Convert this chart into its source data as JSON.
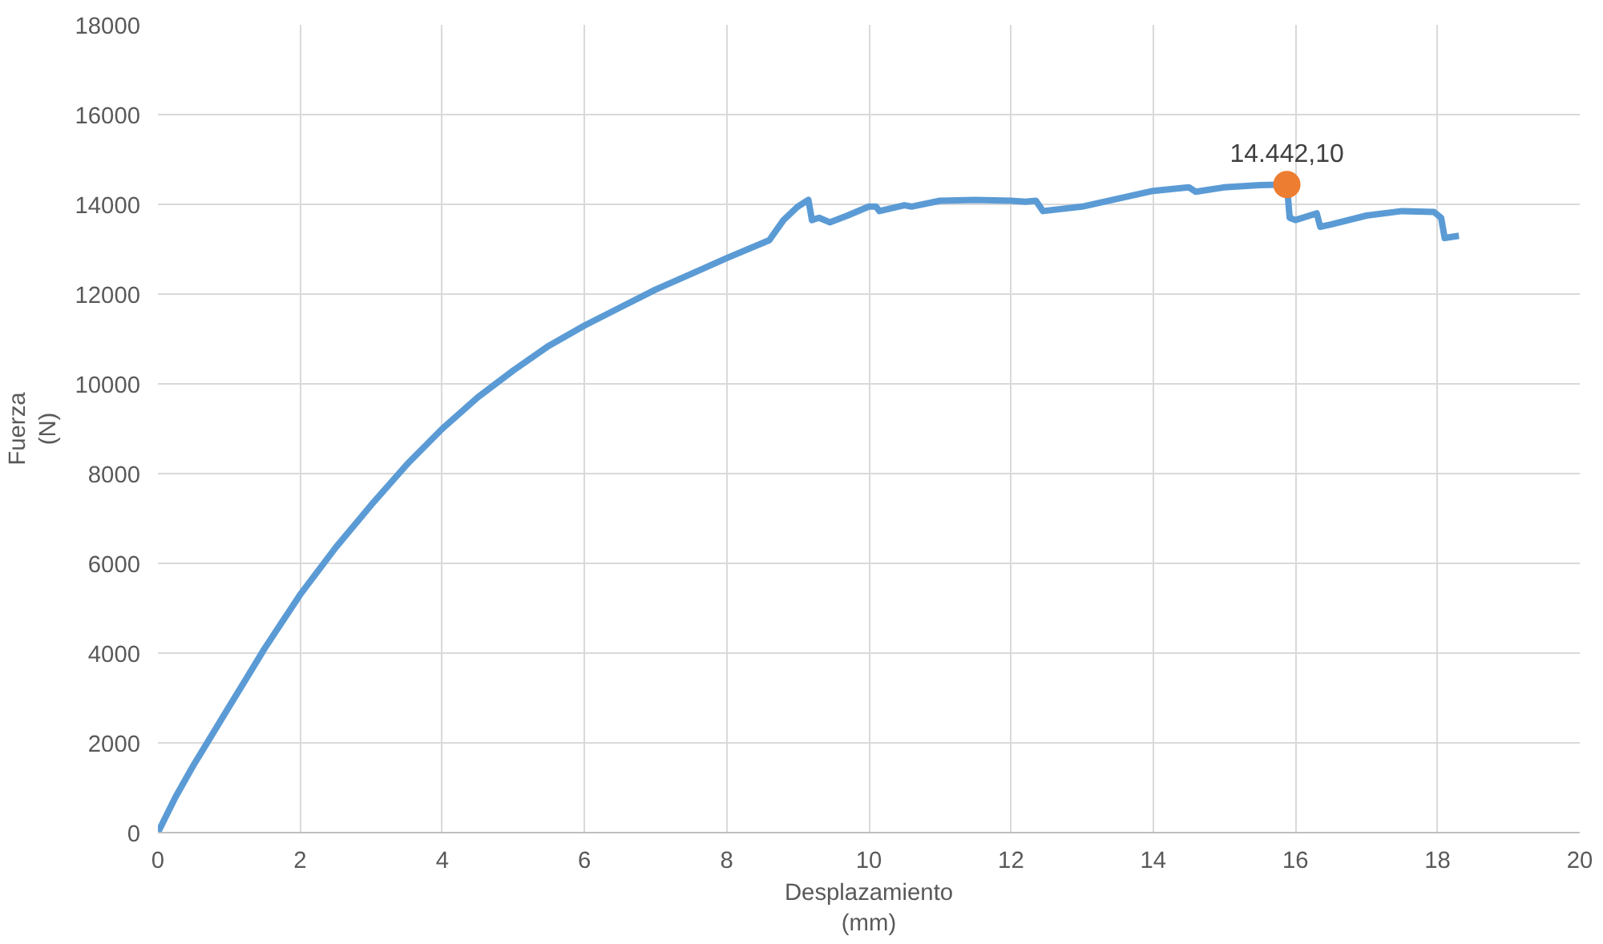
{
  "chart_data": {
    "type": "line",
    "xlabel": "Desplazamiento\n(mm)",
    "ylabel": "Fuerza\n(N)",
    "xlim": [
      0,
      20
    ],
    "xticks": [
      0,
      2,
      4,
      6,
      8,
      10,
      12,
      14,
      16,
      18,
      20
    ],
    "ylim": [
      0,
      18000
    ],
    "yticks": [
      0,
      2000,
      4000,
      6000,
      8000,
      10000,
      12000,
      14000,
      16000,
      18000
    ],
    "grid": true,
    "marker": "none",
    "line_style": "solid",
    "series": [
      {
        "color": "#5b9bd5",
        "x": [
          0,
          0.25,
          0.5,
          0.75,
          1,
          1.25,
          1.5,
          1.75,
          2,
          2.5,
          3,
          3.5,
          4,
          4.5,
          5,
          5.5,
          6,
          6.5,
          7,
          7.5,
          8,
          8.6,
          8.8,
          9.0,
          9.15,
          9.2,
          9.3,
          9.45,
          9.7,
          10.0,
          10.1,
          10.15,
          10.5,
          10.6,
          11.0,
          11.5,
          12.0,
          12.2,
          12.35,
          12.45,
          13.0,
          14.0,
          14.5,
          14.6,
          15.0,
          15.5,
          15.88,
          15.92,
          16.0,
          16.3,
          16.35,
          16.5,
          17.0,
          17.5,
          17.95,
          18.05,
          18.1,
          18.3
        ],
        "values": [
          0,
          800,
          1500,
          2150,
          2800,
          3450,
          4100,
          4700,
          5300,
          6350,
          7300,
          8200,
          9000,
          9700,
          10300,
          10850,
          11300,
          11700,
          12100,
          12450,
          12800,
          13200,
          13650,
          13950,
          14100,
          13650,
          13700,
          13600,
          13750,
          13950,
          13950,
          13850,
          13980,
          13950,
          14080,
          14100,
          14080,
          14060,
          14080,
          13850,
          13950,
          14300,
          14380,
          14280,
          14380,
          14430,
          14440,
          13700,
          13650,
          13800,
          13500,
          13550,
          13750,
          13850,
          13830,
          13700,
          13250,
          13300
        ]
      },
      {
        "type": "scatter",
        "color": "#ed7d31",
        "marker": "circle",
        "x": [
          15.88
        ],
        "values": [
          14442.1
        ],
        "value_labels": [
          "14.442,10"
        ]
      }
    ]
  }
}
